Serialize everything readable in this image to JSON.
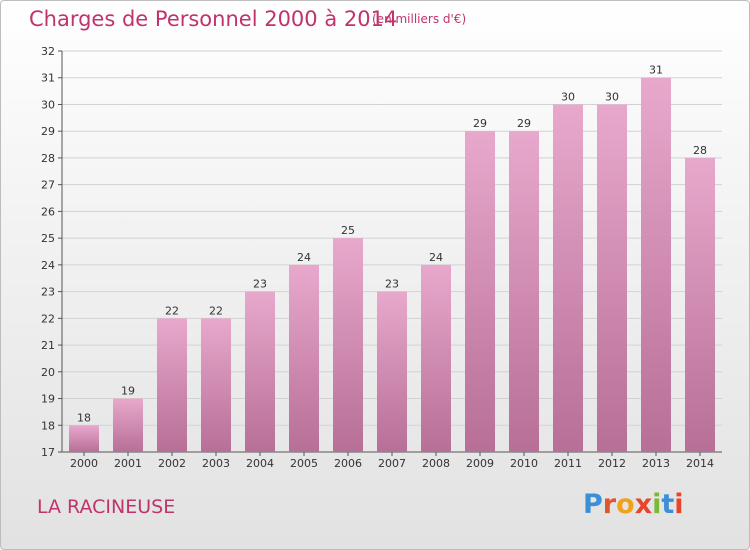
{
  "header": {
    "title": "Charges de Personnel 2000 à 2014",
    "unit": "(en milliers d'€)"
  },
  "footer": {
    "commune": "LA RACINEUSE",
    "logo": "Proxiti",
    "logo_colors": [
      "#3b8fd6",
      "#e0552d",
      "#f0a21c",
      "#e8452c",
      "#7cb936",
      "#3b8fd6",
      "#e8452c"
    ]
  },
  "colors": {
    "bar_top": "#e8a8cc",
    "bar_bottom": "#b76f97",
    "text_accent": "#c0336c"
  },
  "chart_data": {
    "type": "bar",
    "categories": [
      "2000",
      "2001",
      "2002",
      "2003",
      "2004",
      "2005",
      "2006",
      "2007",
      "2008",
      "2009",
      "2010",
      "2011",
      "2012",
      "2013",
      "2014"
    ],
    "values": [
      18,
      19,
      22,
      22,
      23,
      24,
      25,
      23,
      24,
      29,
      29,
      30,
      30,
      31,
      28
    ],
    "ylim": [
      17,
      32
    ],
    "yticks": [
      17,
      18,
      19,
      20,
      21,
      22,
      23,
      24,
      25,
      26,
      27,
      28,
      29,
      30,
      31,
      32
    ],
    "grid": true,
    "data_labels": true
  }
}
